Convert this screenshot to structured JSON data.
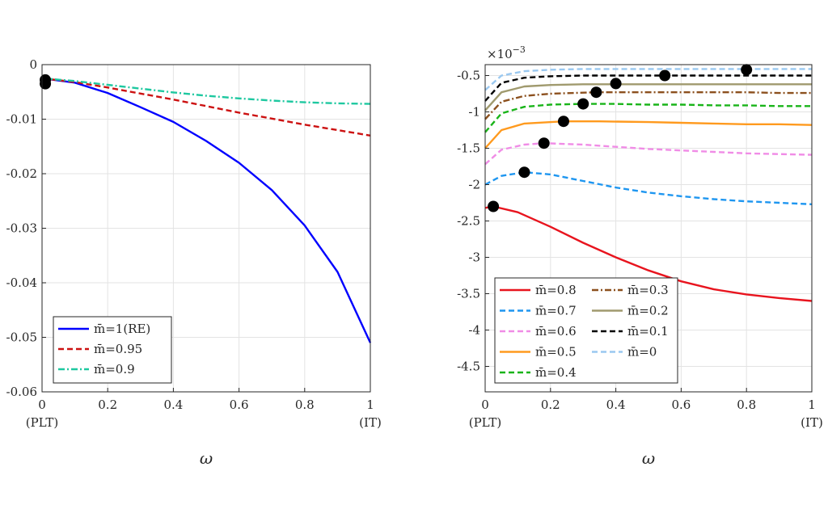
{
  "chart_data": [
    {
      "type": "line",
      "xlabel": "ω",
      "xlim": [
        0,
        1
      ],
      "ylim": [
        -0.06,
        0
      ],
      "xticks": [
        "0",
        "0.2",
        "0.4",
        "0.6",
        "0.8",
        "1"
      ],
      "yticks": [
        "0",
        "-0.01",
        "-0.02",
        "-0.03",
        "-0.04",
        "-0.05",
        "-0.06"
      ],
      "x_end_labels": [
        "(PLT)",
        "(IT)"
      ],
      "grid": true,
      "legend_position": "bottom-left",
      "series": [
        {
          "name": "m̄=1(RE)",
          "color": "#0000ff",
          "style": "solid",
          "x": [
            0,
            0.1,
            0.2,
            0.3,
            0.4,
            0.5,
            0.6,
            0.7,
            0.8,
            0.9,
            1.0
          ],
          "y": [
            -0.0025,
            -0.0033,
            -0.0052,
            -0.0078,
            -0.0105,
            -0.014,
            -0.018,
            -0.023,
            -0.0295,
            -0.038,
            -0.051
          ]
        },
        {
          "name": "m̄=0.95",
          "color": "#cc1111",
          "style": "dashed",
          "x": [
            0,
            0.1,
            0.2,
            0.3,
            0.4,
            0.5,
            0.6,
            0.7,
            0.8,
            0.9,
            1.0
          ],
          "y": [
            -0.0025,
            -0.0032,
            -0.0042,
            -0.0053,
            -0.0064,
            -0.0076,
            -0.0088,
            -0.0099,
            -0.011,
            -0.012,
            -0.013
          ]
        },
        {
          "name": "m̄=0.9",
          "color": "#1ec8a0",
          "style": "dashdot",
          "x": [
            0,
            0.1,
            0.2,
            0.3,
            0.4,
            0.5,
            0.6,
            0.7,
            0.8,
            0.9,
            1.0
          ],
          "y": [
            -0.0025,
            -0.003,
            -0.0037,
            -0.0044,
            -0.0051,
            -0.0057,
            -0.0062,
            -0.0066,
            -0.0069,
            -0.0071,
            -0.0072
          ]
        }
      ],
      "markers": [
        {
          "x": 0.01,
          "y": -0.0028
        },
        {
          "x": 0.01,
          "y": -0.0035
        }
      ]
    },
    {
      "type": "line",
      "xlabel": "ω",
      "xlim": [
        0,
        1
      ],
      "ylim": [
        -4.85,
        -0.35
      ],
      "y_multiplier": "×10",
      "y_multiplier_exp": "−3",
      "xticks": [
        "0",
        "0.2",
        "0.4",
        "0.6",
        "0.8",
        "1"
      ],
      "yticks": [
        "-0.5",
        "-1",
        "-1.5",
        "-2",
        "-2.5",
        "-3",
        "-3.5",
        "-4",
        "-4.5"
      ],
      "x_end_labels": [
        "(PLT)",
        "(IT)"
      ],
      "grid": true,
      "legend_position": "bottom-left",
      "series": [
        {
          "name": "m̄=0.8",
          "color": "#e8141e",
          "style": "solid",
          "x": [
            0,
            0.025,
            0.1,
            0.2,
            0.3,
            0.4,
            0.5,
            0.6,
            0.7,
            0.8,
            0.9,
            1.0
          ],
          "y": [
            -2.32,
            -2.3,
            -2.38,
            -2.58,
            -2.8,
            -3.0,
            -3.18,
            -3.33,
            -3.44,
            -3.51,
            -3.56,
            -3.6
          ]
        },
        {
          "name": "m̄=0.7",
          "color": "#1e96f0",
          "style": "dashed",
          "x": [
            0,
            0.05,
            0.12,
            0.2,
            0.3,
            0.4,
            0.5,
            0.6,
            0.7,
            0.8,
            0.9,
            1.0
          ],
          "y": [
            -2.0,
            -1.88,
            -1.83,
            -1.86,
            -1.95,
            -2.04,
            -2.11,
            -2.16,
            -2.2,
            -2.23,
            -2.25,
            -2.27
          ]
        },
        {
          "name": "m̄=0.6",
          "color": "#f08ce6",
          "style": "dashed",
          "x": [
            0,
            0.05,
            0.12,
            0.18,
            0.3,
            0.4,
            0.5,
            0.6,
            0.7,
            0.8,
            0.9,
            1.0
          ],
          "y": [
            -1.72,
            -1.52,
            -1.45,
            -1.43,
            -1.45,
            -1.48,
            -1.51,
            -1.53,
            -1.55,
            -1.57,
            -1.58,
            -1.59
          ]
        },
        {
          "name": "m̄=0.5",
          "color": "#ff9a1e",
          "style": "solid",
          "x": [
            0,
            0.05,
            0.12,
            0.24,
            0.35,
            0.5,
            0.6,
            0.7,
            0.8,
            0.9,
            1.0
          ],
          "y": [
            -1.5,
            -1.25,
            -1.16,
            -1.13,
            -1.13,
            -1.14,
            -1.15,
            -1.16,
            -1.17,
            -1.17,
            -1.18
          ]
        },
        {
          "name": "m̄=0.4",
          "color": "#19b419",
          "style": "dashed",
          "x": [
            0,
            0.05,
            0.12,
            0.2,
            0.3,
            0.4,
            0.5,
            0.6,
            0.7,
            0.8,
            0.9,
            1.0
          ],
          "y": [
            -1.28,
            -1.02,
            -0.93,
            -0.9,
            -0.89,
            -0.89,
            -0.9,
            -0.9,
            -0.91,
            -0.91,
            -0.92,
            -0.92
          ]
        },
        {
          "name": "m̄=0.3",
          "color": "#8c501e",
          "style": "dashdot",
          "x": [
            0,
            0.05,
            0.12,
            0.2,
            0.34,
            0.4,
            0.5,
            0.6,
            0.7,
            0.8,
            0.9,
            1.0
          ],
          "y": [
            -1.1,
            -0.86,
            -0.78,
            -0.75,
            -0.73,
            -0.73,
            -0.73,
            -0.73,
            -0.73,
            -0.73,
            -0.74,
            -0.74
          ]
        },
        {
          "name": "m̄=0.2",
          "color": "#a09a6e",
          "style": "solid",
          "x": [
            0,
            0.05,
            0.12,
            0.2,
            0.3,
            0.4,
            0.5,
            0.6,
            0.7,
            0.8,
            0.9,
            1.0
          ],
          "y": [
            -0.98,
            -0.73,
            -0.65,
            -0.63,
            -0.62,
            -0.62,
            -0.62,
            -0.62,
            -0.62,
            -0.62,
            -0.62,
            -0.62
          ]
        },
        {
          "name": "m̄=0.1",
          "color": "#000000",
          "style": "dashed",
          "x": [
            0,
            0.05,
            0.12,
            0.2,
            0.3,
            0.4,
            0.55,
            0.7,
            0.8,
            0.9,
            1.0
          ],
          "y": [
            -0.85,
            -0.6,
            -0.53,
            -0.51,
            -0.5,
            -0.5,
            -0.5,
            -0.5,
            -0.5,
            -0.5,
            -0.5
          ]
        },
        {
          "name": "m̄=0",
          "color": "#9ac8f0",
          "style": "dashed",
          "x": [
            0,
            0.05,
            0.12,
            0.2,
            0.3,
            0.4,
            0.55,
            0.7,
            0.8,
            0.9,
            1.0
          ],
          "y": [
            -0.7,
            -0.5,
            -0.44,
            -0.42,
            -0.41,
            -0.41,
            -0.41,
            -0.41,
            -0.41,
            -0.41,
            -0.41
          ]
        }
      ],
      "markers": [
        {
          "x": 0.025,
          "y": -2.3
        },
        {
          "x": 0.12,
          "y": -1.83
        },
        {
          "x": 0.18,
          "y": -1.43
        },
        {
          "x": 0.24,
          "y": -1.13
        },
        {
          "x": 0.3,
          "y": -0.89
        },
        {
          "x": 0.34,
          "y": -0.73
        },
        {
          "x": 0.4,
          "y": -0.61
        },
        {
          "x": 0.55,
          "y": -0.5
        },
        {
          "x": 0.8,
          "y": -0.42
        }
      ]
    }
  ]
}
